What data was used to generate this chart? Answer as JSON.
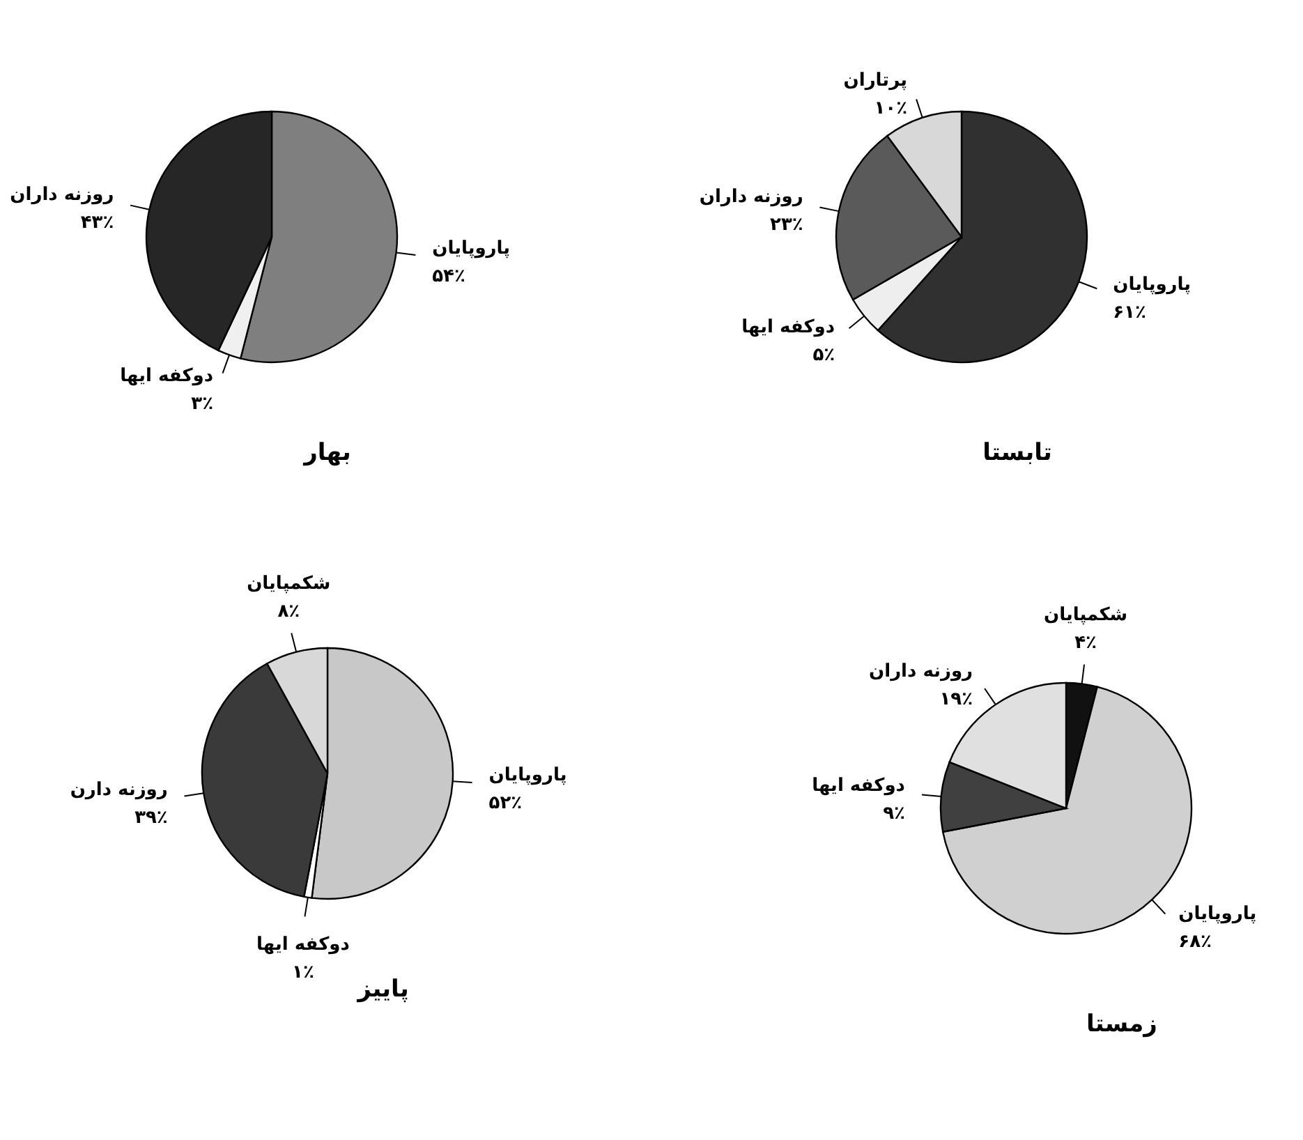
{
  "chart_data": [
    {
      "type": "pie",
      "title": "بهار",
      "categories": [
        "پاروپایان",
        "دوکفه ایها",
        "روزنه داران"
      ],
      "values": [
        54,
        3,
        43
      ],
      "value_labels": [
        "۵۴٪",
        "۳٪",
        "۴۳٪"
      ],
      "colors": [
        "#7f7f7f",
        "#f0f0f0",
        "#262626"
      ]
    },
    {
      "type": "pie",
      "title": "تابستا",
      "categories": [
        "پاروپایان",
        "دوکفه ایها",
        "روزنه داران",
        "پرتاران"
      ],
      "values": [
        61,
        5,
        23,
        10
      ],
      "value_labels": [
        "۶۱٪",
        "۵٪",
        "۲۳٪",
        "۱۰٪"
      ],
      "colors": [
        "#303030",
        "#eeeeee",
        "#5a5a5a",
        "#d8d8d8"
      ]
    },
    {
      "type": "pie",
      "title": "پاییز",
      "categories": [
        "پاروپایان",
        "دوکفه ایها",
        "روزنه دارن",
        "شکمپایان"
      ],
      "values": [
        52,
        1,
        39,
        8
      ],
      "value_labels": [
        "۵۲٪",
        "۱٪",
        "۳۹٪",
        "۸٪"
      ],
      "colors": [
        "#c8c8c8",
        "#ffffff",
        "#3a3a3a",
        "#d8d8d8"
      ]
    },
    {
      "type": "pie",
      "title": "زمستا",
      "categories": [
        "شکمپایان",
        "پاروپایان",
        "دوکفه ایها",
        "روزنه داران"
      ],
      "values": [
        4,
        68,
        9,
        19
      ],
      "value_labels": [
        "۴٪",
        "۶۸٪",
        "۹٪",
        "۱۹٪"
      ],
      "colors": [
        "#111111",
        "#d0d0d0",
        "#404040",
        "#e0e0e0"
      ]
    }
  ]
}
